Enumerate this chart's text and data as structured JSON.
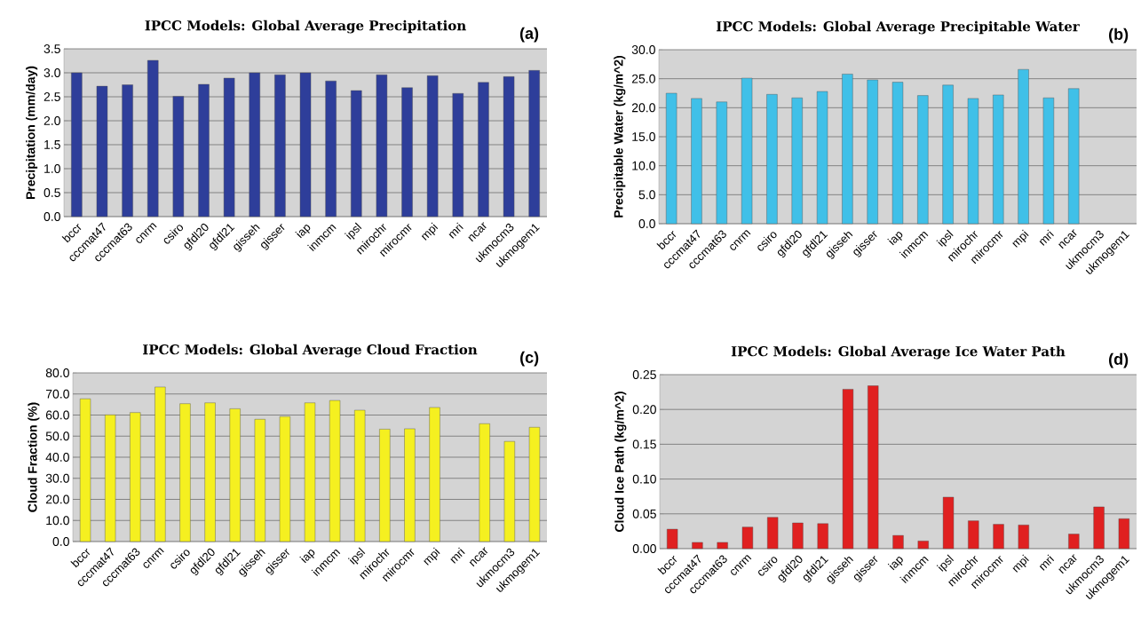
{
  "chart_data": [
    {
      "type": "bar",
      "title": "IPCC Models: Global Average Precipitation",
      "annotations": [
        "(a)"
      ],
      "ylabel": "Precipitation (mm/day)",
      "categories": [
        "bccr",
        "cccmat47",
        "cccmat63",
        "cnrm",
        "csiro",
        "gfdl20",
        "gfdl21",
        "gisseh",
        "gisser",
        "iap",
        "inmcm",
        "ipsl",
        "mirochr",
        "mirocmr",
        "mpi",
        "mri",
        "ncar",
        "ukmocm3",
        "ukmogem1"
      ],
      "values": [
        3.0,
        2.72,
        2.75,
        3.26,
        2.51,
        2.76,
        2.89,
        3.0,
        2.96,
        3.0,
        2.83,
        2.63,
        2.96,
        2.69,
        2.94,
        2.57,
        2.8,
        2.92,
        3.05
      ],
      "color": "#2e3e9a",
      "ylim": [
        0,
        3.5
      ],
      "yticks": [
        {
          "value": 0,
          "label": "0.0"
        },
        {
          "value": 0.5,
          "label": "0.5"
        },
        {
          "value": 1,
          "label": "1.0"
        },
        {
          "value": 1.5,
          "label": "1.5"
        },
        {
          "value": 2,
          "label": "2.0"
        },
        {
          "value": 2.5,
          "label": "2.5"
        },
        {
          "value": 3,
          "label": "3.0"
        },
        {
          "value": 3.5,
          "label": "3.5"
        }
      ],
      "grid": "y"
    },
    {
      "type": "bar",
      "title": "IPCC Models: Global Average Precipitable Water",
      "annotations": [
        "(b)"
      ],
      "ylabel": "Precipitable Water (kg/m^2)",
      "categories": [
        "bccr",
        "cccmat47",
        "cccmat63",
        "cnrm",
        "csiro",
        "gfdl20",
        "gfdl21",
        "gisseh",
        "gisser",
        "iap",
        "inmcm",
        "ipsl",
        "mirochr",
        "mirocmr",
        "mpi",
        "mri",
        "ncar",
        "ukmocm3",
        "ukmogem1"
      ],
      "values": [
        22.5,
        21.6,
        21.0,
        25.1,
        22.3,
        21.7,
        22.8,
        25.8,
        24.8,
        24.4,
        22.1,
        23.9,
        21.6,
        22.2,
        26.6,
        21.7,
        23.3,
        null,
        null
      ],
      "color": "#40c0e8",
      "ylim": [
        0,
        30
      ],
      "yticks": [
        {
          "value": 0,
          "label": "0.0"
        },
        {
          "value": 5,
          "label": "5.0"
        },
        {
          "value": 10,
          "label": "10.0"
        },
        {
          "value": 15,
          "label": "15.0"
        },
        {
          "value": 20,
          "label": "20.0"
        },
        {
          "value": 25,
          "label": "25.0"
        },
        {
          "value": 30,
          "label": "30.0"
        }
      ],
      "grid": "y"
    },
    {
      "type": "bar",
      "title": "IPCC Models: Global Average Cloud Fraction",
      "annotations": [
        "(c)"
      ],
      "ylabel": "Cloud Fraction (%)",
      "categories": [
        "bccr",
        "cccmat47",
        "cccmat63",
        "cnrm",
        "csiro",
        "gfdl20",
        "gfdl21",
        "gisseh",
        "gisser",
        "iap",
        "inmcm",
        "ipsl",
        "mirochr",
        "mirocmr",
        "mpi",
        "mri",
        "ncar",
        "ukmocm3",
        "ukmogem1"
      ],
      "values": [
        67.7,
        60.1,
        61.2,
        73.3,
        65.4,
        65.8,
        63.0,
        58.0,
        59.3,
        65.8,
        66.9,
        62.3,
        53.3,
        53.5,
        63.6,
        null,
        55.9,
        47.5,
        54.2
      ],
      "color": "#f5f020",
      "ylim": [
        0,
        80
      ],
      "yticks": [
        {
          "value": 0,
          "label": "0.0"
        },
        {
          "value": 10,
          "label": "10.0"
        },
        {
          "value": 20,
          "label": "20.0"
        },
        {
          "value": 30,
          "label": "30.0"
        },
        {
          "value": 40,
          "label": "40.0"
        },
        {
          "value": 50,
          "label": "50.0"
        },
        {
          "value": 60,
          "label": "60.0"
        },
        {
          "value": 70,
          "label": "70.0"
        },
        {
          "value": 80,
          "label": "80.0"
        }
      ],
      "grid": "y"
    },
    {
      "type": "bar",
      "title": "IPCC Models: Global Average Ice Water Path",
      "annotations": [
        "(d)"
      ],
      "ylabel": "Cloud Ice Path (kg/m^2)",
      "categories": [
        "bccr",
        "cccmat47",
        "cccmat63",
        "cnrm",
        "csiro",
        "gfdl20",
        "gfdl21",
        "gisseh",
        "gisser",
        "iap",
        "inmcm",
        "ipsl",
        "mirochr",
        "mirocmr",
        "mpi",
        "mri",
        "ncar",
        "ukmocm3",
        "ukmogem1"
      ],
      "values": [
        0.028,
        0.009,
        0.009,
        0.031,
        0.045,
        0.037,
        0.036,
        0.229,
        0.234,
        0.019,
        0.011,
        0.074,
        0.04,
        0.035,
        0.034,
        null,
        0.021,
        0.06,
        0.043
      ],
      "color": "#e02020",
      "ylim": [
        0,
        0.25
      ],
      "yticks": [
        {
          "value": 0,
          "label": "0.00"
        },
        {
          "value": 0.05,
          "label": "0.05"
        },
        {
          "value": 0.1,
          "label": "0.10"
        },
        {
          "value": 0.15,
          "label": "0.15"
        },
        {
          "value": 0.2,
          "label": "0.20"
        },
        {
          "value": 0.25,
          "label": "0.25"
        }
      ],
      "grid": "y"
    }
  ]
}
